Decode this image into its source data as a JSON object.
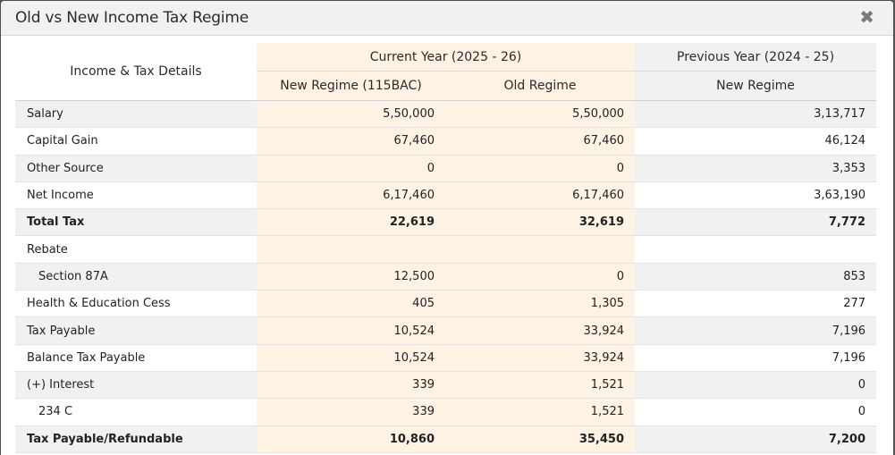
{
  "dialog": {
    "title": "Old vs New Income Tax Regime",
    "close_glyph": "✖"
  },
  "table": {
    "label_header": "Income & Tax Details",
    "current_year_header": "Current Year (2025 - 26)",
    "previous_year_header": "Previous Year (2024 - 25)",
    "sub_new_regime": "New Regime (115BAC)",
    "sub_old_regime": "Old Regime",
    "sub_prev_new_regime": "New Regime",
    "rows": [
      {
        "label": "Salary",
        "new": "5,50,000",
        "old": "5,50,000",
        "prev": "3,13,717"
      },
      {
        "label": "Capital Gain",
        "new": "67,460",
        "old": "67,460",
        "prev": "46,124"
      },
      {
        "label": "Other Source",
        "new": "0",
        "old": "0",
        "prev": "3,353"
      },
      {
        "label": "Net Income",
        "new": "6,17,460",
        "old": "6,17,460",
        "prev": "3,63,190"
      },
      {
        "label": "Total Tax",
        "new": "22,619",
        "old": "32,619",
        "prev": "7,772"
      },
      {
        "label": "Rebate",
        "new": "",
        "old": "",
        "prev": ""
      },
      {
        "label": "Section 87A",
        "new": "12,500",
        "old": "0",
        "prev": "853"
      },
      {
        "label": "Health & Education Cess",
        "new": "405",
        "old": "1,305",
        "prev": "277"
      },
      {
        "label": "Tax Payable",
        "new": "10,524",
        "old": "33,924",
        "prev": "7,196"
      },
      {
        "label": "Balance Tax Payable",
        "new": "10,524",
        "old": "33,924",
        "prev": "7,196"
      },
      {
        "label": "(+) Interest",
        "new": "339",
        "old": "1,521",
        "prev": "0"
      },
      {
        "label": "234 C",
        "new": "339",
        "old": "1,521",
        "prev": "0"
      },
      {
        "label": "Tax Payable/Refundable",
        "new": "10,860",
        "old": "35,450",
        "prev": "7,200"
      }
    ]
  }
}
